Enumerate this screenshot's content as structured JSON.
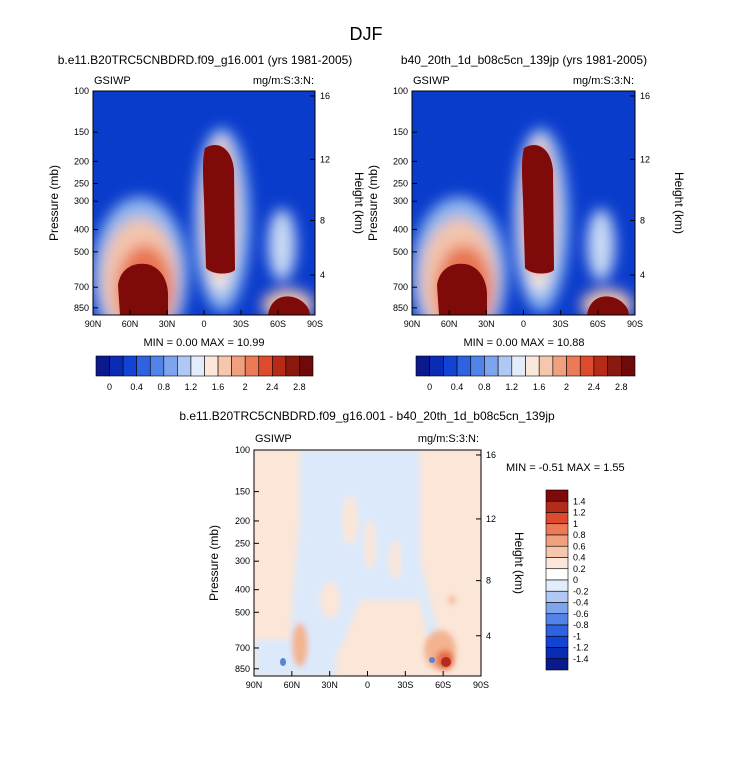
{
  "page_title": "DJF",
  "colors": {
    "blue_dark": "#0a1a8c",
    "blue": "#0a3ccc",
    "white": "#ffffff",
    "red": "#e8472a",
    "red_dark": "#7e0a0a"
  },
  "chart_data": [
    {
      "type": "heatmap",
      "title": "b.e11.B20TRC5CNBDRD.f09_g16.001 (yrs 1981-2005)",
      "left_label": "GSIWP",
      "right_label": "mg/m:S:3:N:",
      "xlabel": "",
      "ylabel": "Pressure (mb)",
      "ylabel_right": "Height (km)",
      "x_ticks": [
        "90N",
        "60N",
        "30N",
        "0",
        "30S",
        "60S",
        "90S"
      ],
      "y_ticks": [
        "100",
        "150",
        "200",
        "250",
        "300",
        "400",
        "500",
        "700",
        "850"
      ],
      "y2_ticks": [
        "16",
        "12",
        "8",
        "4"
      ],
      "min_max": "MIN =  0.00  MAX = 10.99",
      "min": 0.0,
      "max": 10.99,
      "colorbar_levels": [
        "0",
        "0.4",
        "0.8",
        "1.2",
        "1.6",
        "2",
        "2.4",
        "2.8"
      ]
    },
    {
      "type": "heatmap",
      "title": "b40_20th_1d_b08c5cn_139jp (yrs 1981-2005)",
      "left_label": "GSIWP",
      "right_label": "mg/m:S:3:N:",
      "xlabel": "",
      "ylabel": "Pressure (mb)",
      "ylabel_right": "Height (km)",
      "x_ticks": [
        "90N",
        "60N",
        "30N",
        "0",
        "30S",
        "60S",
        "90S"
      ],
      "y_ticks": [
        "100",
        "150",
        "200",
        "250",
        "300",
        "400",
        "500",
        "700",
        "850"
      ],
      "y2_ticks": [
        "16",
        "12",
        "8",
        "4"
      ],
      "min_max": "MIN =  0.00  MAX = 10.88",
      "min": 0.0,
      "max": 10.88,
      "colorbar_levels": [
        "0",
        "0.4",
        "0.8",
        "1.2",
        "1.6",
        "2",
        "2.4",
        "2.8"
      ]
    },
    {
      "type": "heatmap",
      "title": "b.e11.B20TRC5CNBDRD.f09_g16.001 - b40_20th_1d_b08c5cn_139jp",
      "left_label": "GSIWP",
      "right_label": "mg/m:S:3:N:",
      "xlabel": "",
      "ylabel": "Pressure (mb)",
      "ylabel_right": "Height (km)",
      "x_ticks": [
        "90N",
        "60N",
        "30N",
        "0",
        "30S",
        "60S",
        "90S"
      ],
      "y_ticks": [
        "100",
        "150",
        "200",
        "250",
        "300",
        "400",
        "500",
        "700",
        "850"
      ],
      "y2_ticks": [
        "16",
        "12",
        "8",
        "4"
      ],
      "min_max": "MIN =  -0.51  MAX =  1.55",
      "min": -0.51,
      "max": 1.55,
      "colorbar_levels": [
        "1.4",
        "1.2",
        "1",
        "0.8",
        "0.6",
        "0.4",
        "0.2",
        "0",
        "-0.2",
        "-0.4",
        "-0.6",
        "-0.8",
        "-1",
        "-1.2",
        "-1.4"
      ]
    }
  ]
}
